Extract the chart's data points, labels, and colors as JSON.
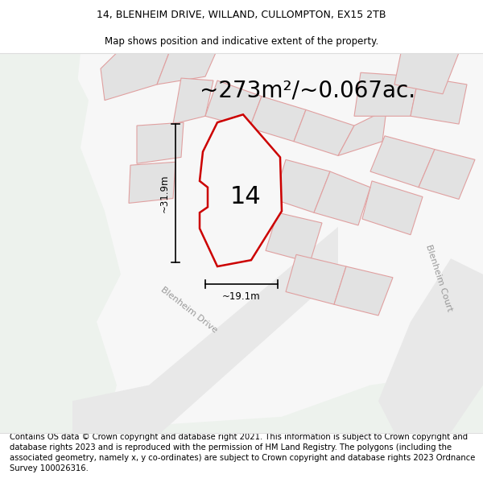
{
  "title_line1": "14, BLENHEIM DRIVE, WILLAND, CULLOMPTON, EX15 2TB",
  "title_line2": "Map shows position and indicative extent of the property.",
  "area_text": "~273m²/~0.067ac.",
  "label_14": "14",
  "dim_height": "~31.9m",
  "dim_width": "~19.1m",
  "road_label1": "Blenheim Drive",
  "road_label2": "Blenheim Court",
  "footer_text": "Contains OS data © Crown copyright and database right 2021. This information is subject to Crown copyright and database rights 2023 and is reproduced with the permission of HM Land Registry. The polygons (including the associated geometry, namely x, y co-ordinates) are subject to Crown copyright and database rights 2023 Ordnance Survey 100026316.",
  "bg_map": "#f7f7f7",
  "bg_green": "#edf2ed",
  "plot_fill": "#f7f7f7",
  "plot_edge": "#cc0000",
  "neighbor_fill": "#e2e2e2",
  "neighbor_edge": "#e0a0a0",
  "road_fill": "#e8e8e8",
  "title_fontsize": 9,
  "area_fontsize": 20,
  "label_fontsize": 22,
  "footer_fontsize": 7.2
}
